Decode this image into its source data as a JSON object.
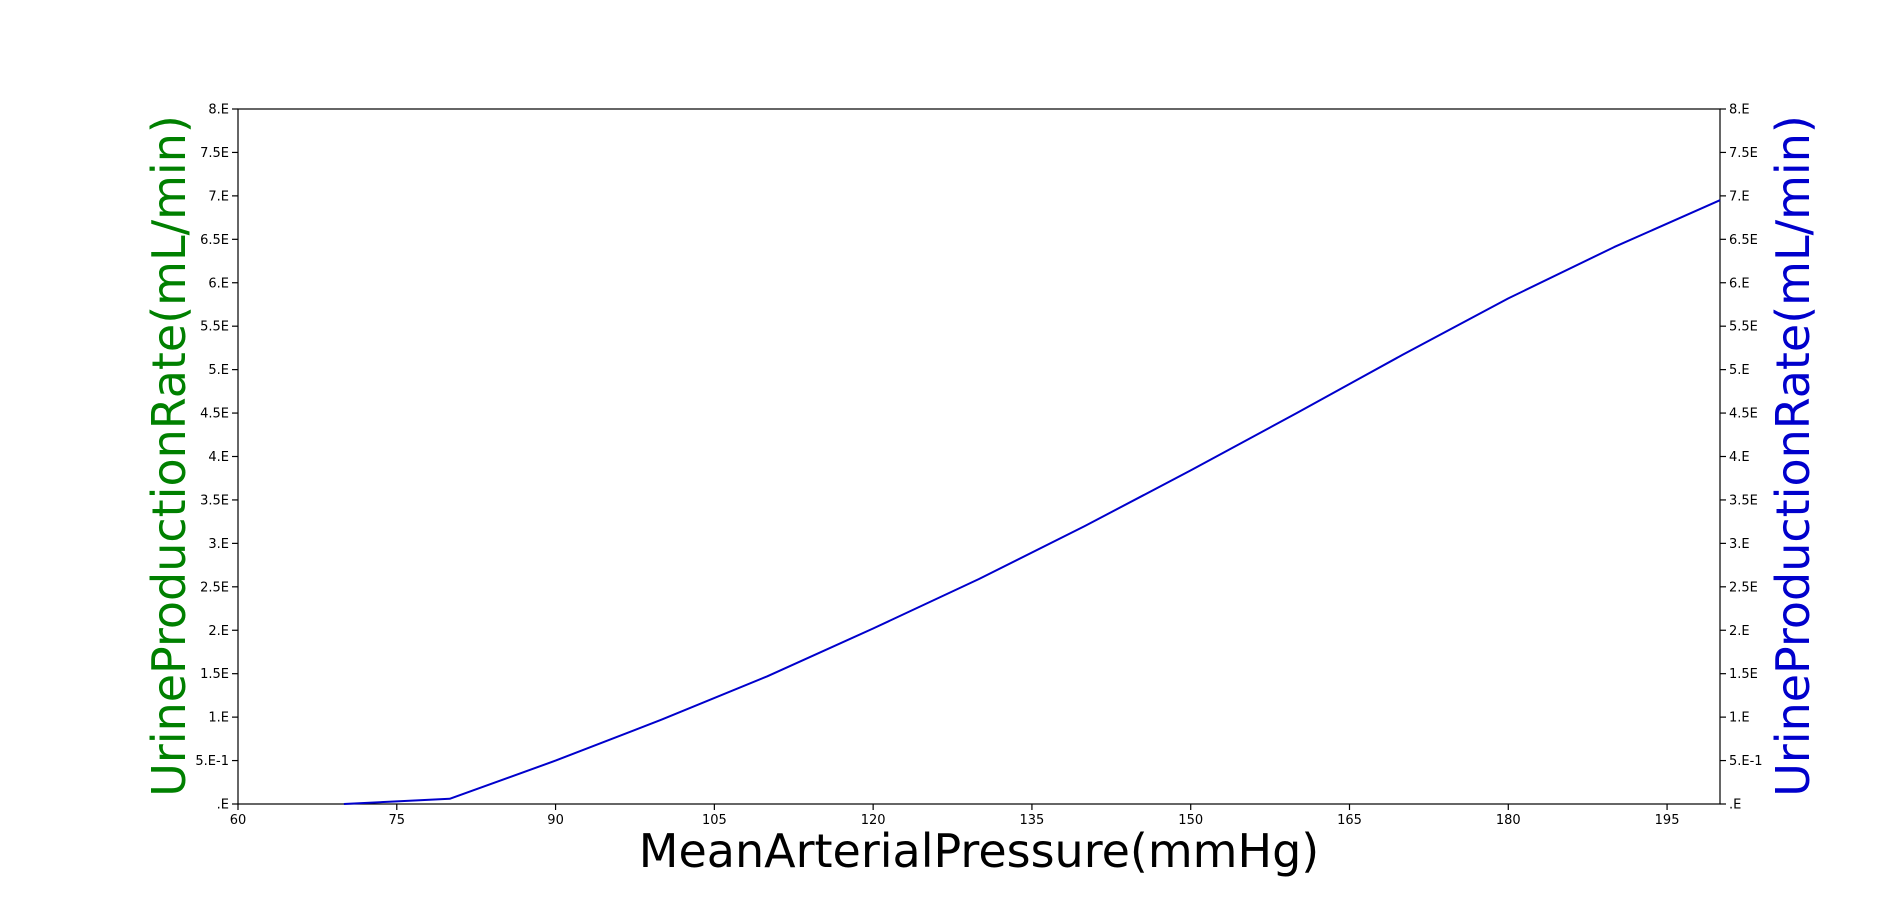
{
  "chart_data": {
    "type": "line",
    "title": "",
    "xlabel": "MeanArterialPressure(mmHg)",
    "ylabel_left": "UrineProductionRate(mL/min)",
    "ylabel_right": "UrineProductionRate(mL/min)",
    "xlim": [
      60,
      200
    ],
    "ylim": [
      0,
      8
    ],
    "grid": false,
    "x_ticks": [
      {
        "value": 60,
        "label": "60"
      },
      {
        "value": 75,
        "label": "75"
      },
      {
        "value": 90,
        "label": "90"
      },
      {
        "value": 105,
        "label": "105"
      },
      {
        "value": 120,
        "label": "120"
      },
      {
        "value": 135,
        "label": "135"
      },
      {
        "value": 150,
        "label": "150"
      },
      {
        "value": 165,
        "label": "165"
      },
      {
        "value": 180,
        "label": "180"
      },
      {
        "value": 195,
        "label": "195"
      }
    ],
    "y_ticks": [
      {
        "value": 0,
        "label": ".E"
      },
      {
        "value": 0.5,
        "label": "5.E-1"
      },
      {
        "value": 1.0,
        "label": "1.E"
      },
      {
        "value": 1.5,
        "label": "1.5E"
      },
      {
        "value": 2.0,
        "label": "2.E"
      },
      {
        "value": 2.5,
        "label": "2.5E"
      },
      {
        "value": 3.0,
        "label": "3.E"
      },
      {
        "value": 3.5,
        "label": "3.5E"
      },
      {
        "value": 4.0,
        "label": "4.E"
      },
      {
        "value": 4.5,
        "label": "4.5E"
      },
      {
        "value": 5.0,
        "label": "5.E"
      },
      {
        "value": 5.5,
        "label": "5.5E"
      },
      {
        "value": 6.0,
        "label": "6.E"
      },
      {
        "value": 6.5,
        "label": "6.5E"
      },
      {
        "value": 7.0,
        "label": "7.E"
      },
      {
        "value": 7.5,
        "label": "7.5E"
      },
      {
        "value": 8.0,
        "label": "8.E"
      }
    ],
    "series": [
      {
        "color": "#0000cc",
        "x": [
          70,
          75,
          80,
          90,
          100,
          110,
          120,
          130,
          140,
          150,
          160,
          170,
          180,
          190,
          200
        ],
        "y": [
          0.0,
          0.03,
          0.06,
          0.5,
          0.97,
          1.47,
          2.02,
          2.59,
          3.2,
          3.84,
          4.5,
          5.17,
          5.82,
          6.41,
          6.95
        ]
      }
    ],
    "colors": {
      "left_label": "#008000",
      "right_label": "#0000cc",
      "axes": "#000000"
    }
  }
}
